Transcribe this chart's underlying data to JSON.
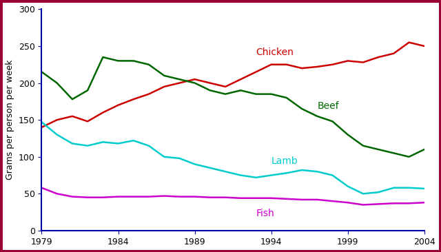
{
  "years": [
    1979,
    1980,
    1981,
    1982,
    1983,
    1984,
    1985,
    1986,
    1987,
    1988,
    1989,
    1990,
    1991,
    1992,
    1993,
    1994,
    1995,
    1996,
    1997,
    1998,
    1999,
    2000,
    2001,
    2002,
    2003,
    2004
  ],
  "chicken": [
    140,
    150,
    155,
    148,
    160,
    170,
    178,
    185,
    195,
    200,
    205,
    200,
    195,
    205,
    215,
    225,
    225,
    220,
    222,
    225,
    230,
    228,
    235,
    240,
    255,
    250
  ],
  "beef": [
    215,
    200,
    178,
    190,
    235,
    230,
    230,
    225,
    210,
    205,
    200,
    190,
    185,
    190,
    185,
    185,
    180,
    165,
    155,
    148,
    130,
    115,
    110,
    105,
    100,
    110
  ],
  "lamb": [
    147,
    130,
    118,
    115,
    120,
    118,
    122,
    115,
    100,
    98,
    90,
    85,
    80,
    75,
    72,
    75,
    78,
    82,
    80,
    75,
    60,
    50,
    52,
    58,
    58,
    57
  ],
  "fish": [
    58,
    50,
    46,
    45,
    45,
    46,
    46,
    46,
    47,
    46,
    46,
    45,
    45,
    44,
    44,
    44,
    43,
    42,
    42,
    40,
    38,
    35,
    36,
    37,
    37,
    38
  ],
  "chicken_color": "#cc0000",
  "beef_color": "#006600",
  "lamb_color": "#00cccc",
  "fish_color": "#cc00cc",
  "ylabel": "Grams per person per week",
  "ylim": [
    0,
    300
  ],
  "yticks": [
    0,
    50,
    100,
    150,
    200,
    250,
    300
  ],
  "xlim": [
    1979,
    2004
  ],
  "xticks": [
    1979,
    1984,
    1989,
    1994,
    1999,
    2004
  ],
  "bg_color": "#ffffff",
  "border_color": "#990033",
  "spine_color": "#0000aa",
  "label_chicken": "Chicken",
  "label_beef": "Beef",
  "label_lamb": "Lamb",
  "label_fish": "Fish",
  "ann_chicken_x": 1993,
  "ann_chicken_y": 238,
  "ann_beef_x": 1997,
  "ann_beef_y": 165,
  "ann_lamb_x": 1994,
  "ann_lamb_y": 90,
  "ann_fish_x": 1993,
  "ann_fish_y": 20
}
